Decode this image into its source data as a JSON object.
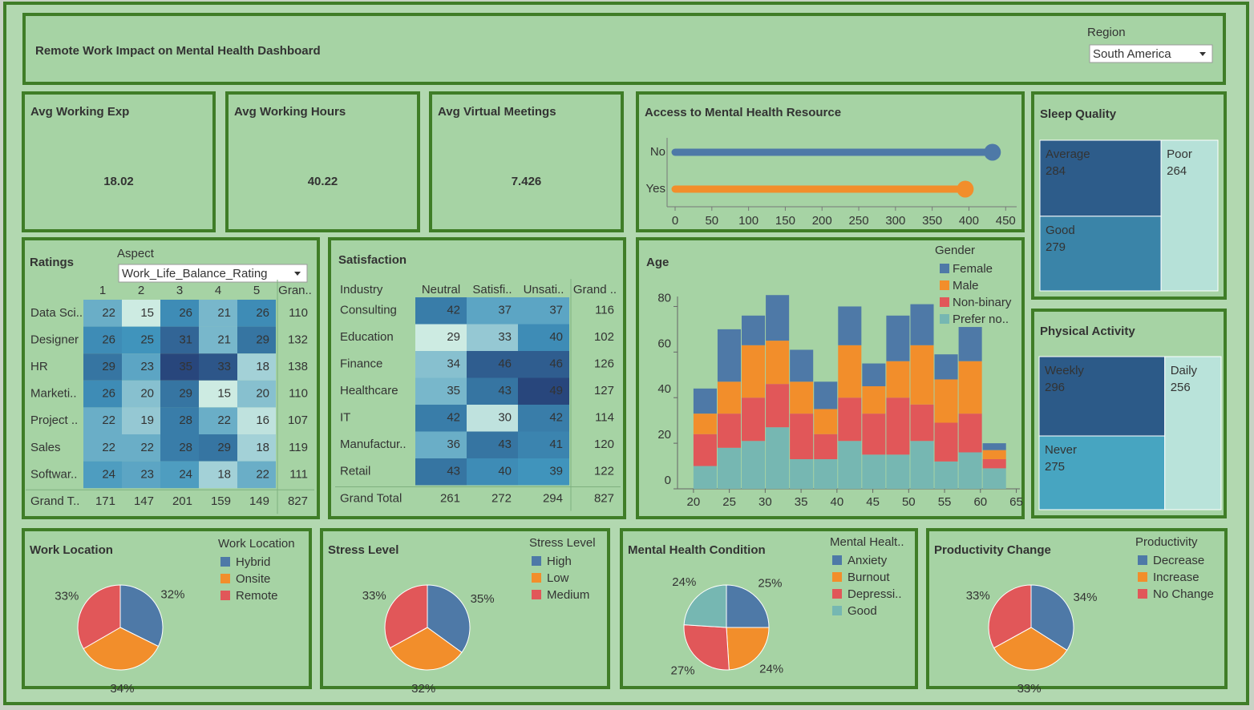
{
  "header": {
    "title": "Remote Work Impact on Mental Health Dashboard",
    "filter_label": "Region",
    "filter_value": "South America"
  },
  "kpis": [
    {
      "label": "Avg Working Exp",
      "value": 18.02
    },
    {
      "label": "Avg Working Hours",
      "value": 40.22
    },
    {
      "label": "Avg Virtual Meetings",
      "value": 7.426
    }
  ],
  "ratings": {
    "title": "Ratings",
    "filter_label": "Aspect",
    "filter_value": "Work_Life_Balance_Rating",
    "columns": [
      "1",
      "2",
      "3",
      "4",
      "5",
      "Gran.."
    ],
    "rows": [
      {
        "label": "Data Sci..",
        "values": [
          22,
          15,
          26,
          21,
          26
        ],
        "total": 110
      },
      {
        "label": "Designer",
        "values": [
          26,
          25,
          31,
          21,
          29
        ],
        "total": 132
      },
      {
        "label": "HR",
        "values": [
          29,
          23,
          35,
          33,
          18
        ],
        "total": 138
      },
      {
        "label": "Marketi..",
        "values": [
          26,
          20,
          29,
          15,
          20
        ],
        "total": 110
      },
      {
        "label": "Project ..",
        "values": [
          22,
          19,
          28,
          22,
          16
        ],
        "total": 107
      },
      {
        "label": "Sales",
        "values": [
          22,
          22,
          28,
          29,
          18
        ],
        "total": 119
      },
      {
        "label": "Softwar..",
        "values": [
          24,
          23,
          24,
          18,
          22
        ],
        "total": 111
      }
    ],
    "grand_total": {
      "label": "Grand T..",
      "values": [
        171,
        147,
        201,
        159,
        149
      ],
      "total": 827
    }
  },
  "satisfaction": {
    "title": "Satisfaction",
    "corner": "Industry",
    "columns": [
      "Neutral",
      "Satisfi..",
      "Unsati..",
      "Grand .."
    ],
    "rows": [
      {
        "label": "Consulting",
        "values": [
          42,
          37,
          37
        ],
        "total": 116
      },
      {
        "label": "Education",
        "values": [
          29,
          33,
          40
        ],
        "total": 102
      },
      {
        "label": "Finance",
        "values": [
          34,
          46,
          46
        ],
        "total": 126
      },
      {
        "label": "Healthcare",
        "values": [
          35,
          43,
          49
        ],
        "total": 127
      },
      {
        "label": "IT",
        "values": [
          42,
          30,
          42
        ],
        "total": 114
      },
      {
        "label": "Manufactur..",
        "values": [
          36,
          43,
          41
        ],
        "total": 120
      },
      {
        "label": "Retail",
        "values": [
          43,
          40,
          39
        ],
        "total": 122
      }
    ],
    "grand_total": {
      "label": "Grand Total",
      "values": [
        261,
        272,
        294
      ],
      "total": 827
    }
  },
  "chart_data": [
    {
      "type": "lollipop",
      "title": "Access to Mental Health Resource",
      "categories": [
        "No",
        "Yes"
      ],
      "values": [
        432,
        395
      ],
      "colors": [
        "#4e79a7",
        "#f28e2b"
      ],
      "xlim": [
        0,
        465
      ],
      "xticks": [
        0,
        50,
        100,
        150,
        200,
        250,
        300,
        350,
        400,
        450
      ]
    },
    {
      "type": "treemap",
      "title": "Sleep Quality",
      "categories": [
        "Average",
        "Good",
        "Poor"
      ],
      "values": [
        284,
        279,
        264
      ],
      "colors": [
        "#2d5c8a",
        "#3a84a8",
        "#b6e1d8"
      ]
    },
    {
      "type": "treemap",
      "title": "Physical Activity",
      "categories": [
        "Weekly",
        "Never",
        "Daily"
      ],
      "values": [
        296,
        275,
        256
      ],
      "colors": [
        "#2c5a88",
        "#47a5c1",
        "#b9e3da"
      ]
    },
    {
      "type": "histogram",
      "title": "Age",
      "legend_title": "Gender",
      "bins": [
        20,
        23.36,
        26.72,
        30.08,
        33.44,
        36.8,
        40.16,
        43.52,
        46.88,
        50.24,
        53.6,
        56.96,
        60.32,
        63.68
      ],
      "series": [
        {
          "name": "Female",
          "color": "#4e79a7",
          "values": [
            11,
            23,
            13,
            20,
            14,
            12,
            17,
            10,
            20,
            18,
            11,
            15,
            3
          ]
        },
        {
          "name": "Male",
          "color": "#f28e2b",
          "values": [
            9,
            14,
            23,
            19,
            14,
            11,
            23,
            12,
            16,
            26,
            19,
            23,
            4
          ]
        },
        {
          "name": "Non-binary",
          "color": "#e15759",
          "values": [
            14,
            15,
            19,
            19,
            20,
            11,
            19,
            18,
            25,
            16,
            17,
            17,
            4
          ]
        },
        {
          "name": "Prefer no..",
          "color": "#76b7b2",
          "values": [
            10,
            18,
            21,
            27,
            13,
            13,
            21,
            15,
            15,
            21,
            12,
            16,
            9
          ]
        }
      ],
      "xlim": [
        18,
        65.5
      ],
      "xticks": [
        20,
        25,
        30,
        35,
        40,
        45,
        50,
        55,
        60,
        65
      ],
      "ylim": [
        0,
        90
      ],
      "yticks": [
        0,
        20,
        40,
        60,
        80
      ]
    },
    {
      "type": "pie",
      "title": "Work Location",
      "legend_title": "Work Location",
      "categories": [
        "Hybrid",
        "Onsite",
        "Remote"
      ],
      "values": [
        32,
        34,
        33
      ],
      "value_labels": [
        "32%",
        "34%",
        "33%"
      ],
      "colors": [
        "#4e79a7",
        "#f28e2b",
        "#e15759"
      ]
    },
    {
      "type": "pie",
      "title": "Stress Level",
      "legend_title": "Stress Level",
      "categories": [
        "High",
        "Low",
        "Medium"
      ],
      "values": [
        35,
        32,
        33
      ],
      "value_labels": [
        "35%",
        "32%",
        "33%"
      ],
      "colors": [
        "#4e79a7",
        "#f28e2b",
        "#e15759"
      ]
    },
    {
      "type": "pie",
      "title": "Mental Health Condition",
      "legend_title": "Mental Healt..",
      "categories": [
        "Anxiety",
        "Burnout",
        "Depressi..",
        "Good"
      ],
      "values": [
        25,
        24,
        27,
        24
      ],
      "value_labels": [
        "25%",
        "24%",
        "27%",
        "24%"
      ],
      "colors": [
        "#4e79a7",
        "#f28e2b",
        "#e15759",
        "#76b7b2"
      ]
    },
    {
      "type": "pie",
      "title": "Productivity Change",
      "legend_title": "Productivity",
      "categories": [
        "Decrease",
        "Increase",
        "No Change"
      ],
      "values": [
        34,
        33,
        33
      ],
      "value_labels": [
        "34%",
        "33%",
        "33%"
      ],
      "colors": [
        "#4e79a7",
        "#f28e2b",
        "#e15759"
      ]
    }
  ]
}
